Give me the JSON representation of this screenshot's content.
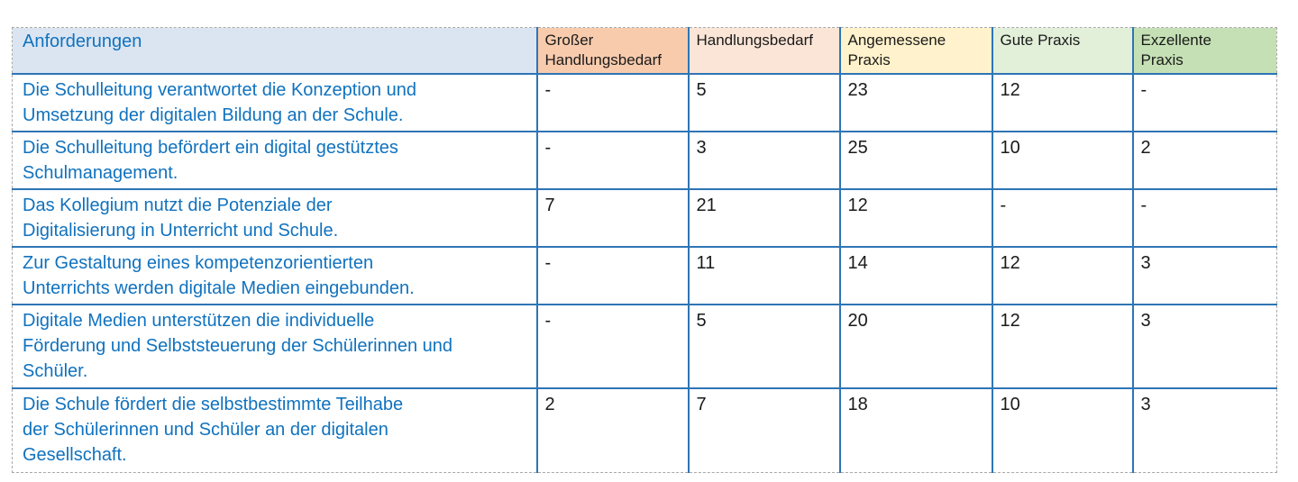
{
  "colors": {
    "inner_border": "#2E75B6",
    "outer_dashed_border": "#A9A9A9",
    "requirement_text": "#1072BE",
    "header_text": "#1A1A1A",
    "value_text": "#1A1A1A",
    "header_anforderungen_bg": "#DBE5F1",
    "header_grosser_bg": "#F8CBAD",
    "header_handlungsbedarf_bg": "#FBE5D6",
    "header_angemessene_bg": "#FFF2CC",
    "header_gute_bg": "#E2EFD9",
    "header_exzellente_bg": "#C5E0B4"
  },
  "table": {
    "header": {
      "anforderungen": {
        "key": "anforderungen",
        "label": "Anforderungen",
        "bg": "#DBE5F1",
        "text_color": "#1072BE"
      },
      "value_columns": [
        {
          "key": "grosser-handlungsbedarf",
          "label": "Großer Handlungsbedarf",
          "label_lines": [
            "Großer",
            "Handlungsbedarf"
          ],
          "bg": "#F8CBAD"
        },
        {
          "key": "handlungsbedarf",
          "label": "Handlungsbedarf",
          "label_lines": [
            "Handlungsbedarf"
          ],
          "bg": "#FBE5D6"
        },
        {
          "key": "angemessene-praxis",
          "label": "Angemessene Praxis",
          "label_lines": [
            "Angemessene",
            "Praxis"
          ],
          "bg": "#FFF2CC"
        },
        {
          "key": "gute-praxis",
          "label": "Gute Praxis",
          "label_lines": [
            "Gute Praxis"
          ],
          "bg": "#E2EFD9"
        },
        {
          "key": "exzellente-praxis",
          "label": "Exzellente Praxis",
          "label_lines": [
            "Exzellente",
            "Praxis"
          ],
          "bg": "#C5E0B4"
        }
      ]
    },
    "rows": [
      {
        "anforderung": "Die Schulleitung verantwortet die Konzeption und Umsetzung der digitalen Bildung an der Schule.",
        "anforderung_lines": [
          "Die Schulleitung verantwortet die Konzeption und",
          "Umsetzung der digitalen Bildung an der Schule."
        ],
        "values": [
          "-",
          "5",
          "23",
          "12",
          "-"
        ]
      },
      {
        "anforderung": "Die Schulleitung befördert ein digital gestütztes Schulmanagement.",
        "anforderung_lines": [
          "Die Schulleitung befördert ein digital gestütztes",
          "Schulmanagement."
        ],
        "values": [
          "-",
          "3",
          "25",
          "10",
          "2"
        ]
      },
      {
        "anforderung": "Das Kollegium nutzt die Potenziale der Digitalisierung in Unterricht und Schule.",
        "anforderung_lines": [
          "Das Kollegium nutzt die Potenziale der",
          "Digitalisierung in Unterricht und Schule."
        ],
        "values": [
          "7",
          "21",
          "12",
          "-",
          "-"
        ]
      },
      {
        "anforderung": "Zur Gestaltung eines kompetenzorientierten Unterrichts werden digitale Medien eingebunden.",
        "anforderung_lines": [
          "Zur Gestaltung eines kompetenzorientierten",
          "Unterrichts werden digitale Medien eingebunden."
        ],
        "values": [
          "-",
          "11",
          "14",
          "12",
          "3"
        ]
      },
      {
        "anforderung": "Digitale Medien unterstützen die individuelle Förderung und Selbststeuerung der Schülerinnen und Schüler.",
        "anforderung_lines": [
          "Digitale Medien unterstützen die individuelle",
          "Förderung und Selbststeuerung der Schülerinnen und",
          "Schüler."
        ],
        "values": [
          "-",
          "5",
          "20",
          "12",
          "3"
        ]
      },
      {
        "anforderung": "Die Schule fördert die selbstbestimmte Teilhabe der Schülerinnen und Schüler an der digitalen Gesellschaft.",
        "anforderung_lines": [
          "Die Schule fördert die selbstbestimmte Teilhabe",
          "der Schülerinnen und Schüler an der digitalen",
          "Gesellschaft."
        ],
        "values": [
          "2",
          "7",
          "18",
          "10",
          "3"
        ]
      }
    ]
  },
  "chart_data": {
    "type": "table",
    "columns": [
      "Anforderungen",
      "Großer Handlungsbedarf",
      "Handlungsbedarf",
      "Angemessene Praxis",
      "Gute Praxis",
      "Exzellente Praxis"
    ],
    "rows": [
      [
        "Die Schulleitung verantwortet die Konzeption und Umsetzung der digitalen Bildung an der Schule.",
        "-",
        "5",
        "23",
        "12",
        "-"
      ],
      [
        "Die Schulleitung befördert ein digital gestütztes Schulmanagement.",
        "-",
        "3",
        "25",
        "10",
        "2"
      ],
      [
        "Das Kollegium nutzt die Potenziale der Digitalisierung in Unterricht und Schule.",
        "7",
        "21",
        "12",
        "-",
        "-"
      ],
      [
        "Zur Gestaltung eines kompetenzorientierten Unterrichts werden digitale Medien eingebunden.",
        "-",
        "11",
        "14",
        "12",
        "3"
      ],
      [
        "Digitale Medien unterstützen die individuelle Förderung und Selbststeuerung der Schülerinnen und Schüler.",
        "-",
        "5",
        "20",
        "12",
        "3"
      ],
      [
        "Die Schule fördert die selbstbestimmte Teilhabe der Schülerinnen und Schüler an der digitalen Gesellschaft.",
        "2",
        "7",
        "18",
        "10",
        "3"
      ]
    ]
  }
}
